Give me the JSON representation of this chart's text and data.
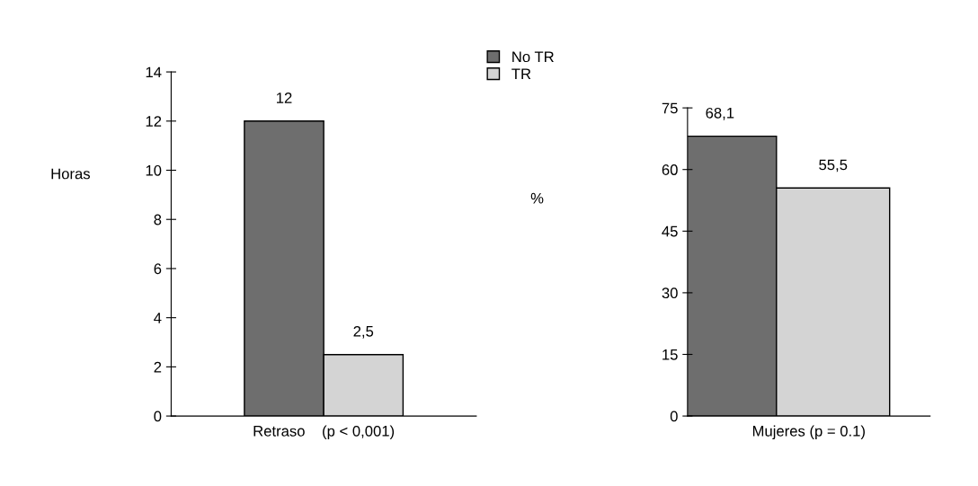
{
  "chart_data": [
    {
      "type": "bar",
      "categories": [
        null
      ],
      "xlabel": "Retraso    (p < 0,001)",
      "ylabel": "Horas",
      "ylim": [
        0,
        14
      ],
      "yticks": [
        0,
        2,
        4,
        6,
        8,
        10,
        12,
        14
      ],
      "grid": false,
      "legend": "top right",
      "series": [
        {
          "name": "No TR",
          "color": "#6e6e6e",
          "values": [
            12
          ],
          "value_labels": [
            "12"
          ]
        },
        {
          "name": "TR",
          "color": "#d4d4d4",
          "values": [
            2.5
          ],
          "value_labels": [
            "2,5"
          ]
        }
      ]
    },
    {
      "type": "bar",
      "categories": [
        null
      ],
      "xlabel": "Mujeres (p = 0.1)",
      "ylabel": "%",
      "ylim": [
        0,
        75
      ],
      "yticks": [
        0,
        15,
        30,
        45,
        60,
        75
      ],
      "grid": false,
      "series": [
        {
          "color": "#6e6e6e",
          "values": [
            68.1
          ],
          "value_labels": [
            "68,1"
          ]
        },
        {
          "color": "#d4d4d4",
          "values": [
            55.5
          ],
          "value_labels": [
            "55,5"
          ]
        }
      ]
    }
  ]
}
